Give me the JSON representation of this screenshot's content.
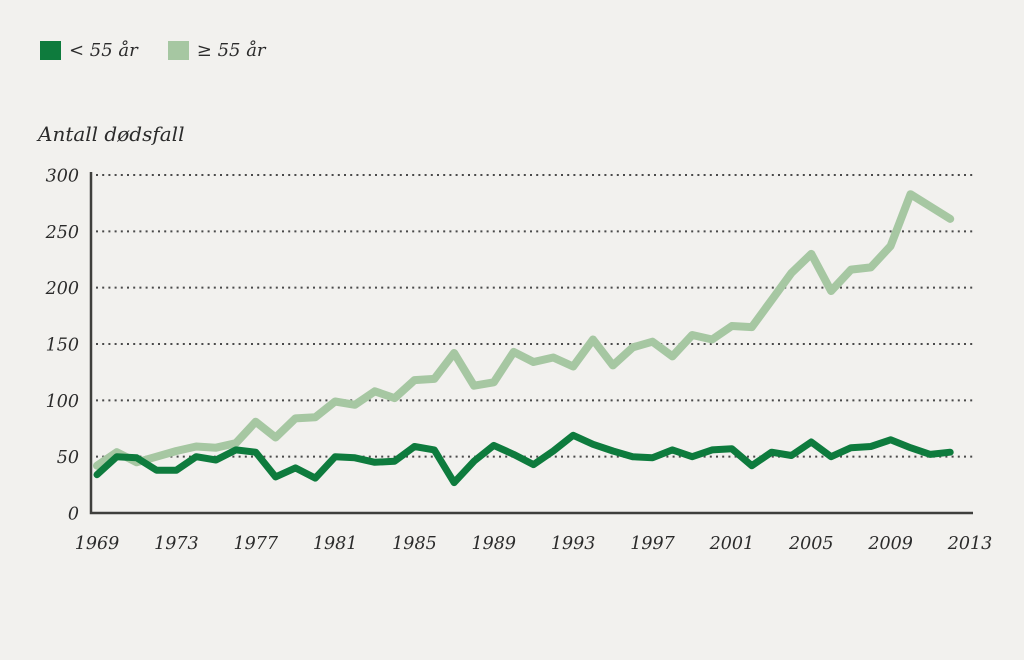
{
  "page": {
    "background": "#f2f1ee"
  },
  "legend": {
    "items": [
      {
        "key": "under-55",
        "label": "< 55 år",
        "color": "#0e7b3d"
      },
      {
        "key": "over-55",
        "label": "≥ 55 år",
        "color": "#a6c7a2"
      }
    ]
  },
  "chart_data": {
    "type": "line",
    "title": "Antall dødsfall",
    "ylabel": "Antall dødsfall",
    "xlabel": "",
    "xlim": [
      1969,
      2013
    ],
    "ylim": [
      0,
      300
    ],
    "grid": "horizontal-dotted",
    "legend_position": "top-left",
    "x_ticks": [
      1969,
      1973,
      1977,
      1981,
      1985,
      1989,
      1993,
      1997,
      2001,
      2005,
      2009,
      2013
    ],
    "y_ticks": [
      0,
      50,
      100,
      150,
      200,
      250,
      300
    ],
    "x": [
      1969,
      1970,
      1971,
      1972,
      1973,
      1974,
      1975,
      1976,
      1977,
      1978,
      1979,
      1980,
      1981,
      1982,
      1983,
      1984,
      1985,
      1986,
      1987,
      1988,
      1989,
      1990,
      1991,
      1992,
      1993,
      1994,
      1995,
      1996,
      1997,
      1998,
      1999,
      2000,
      2001,
      2002,
      2003,
      2004,
      2005,
      2006,
      2007,
      2008,
      2009,
      2010,
      2011,
      2012
    ],
    "series": [
      {
        "name": "< 55 år",
        "color": "#0e7b3d",
        "values": [
          34,
          50,
          49,
          38,
          38,
          50,
          47,
          56,
          54,
          32,
          40,
          31,
          50,
          49,
          45,
          46,
          59,
          56,
          27,
          46,
          60,
          52,
          43,
          55,
          69,
          61,
          55,
          50,
          49,
          56,
          50,
          56,
          57,
          42,
          54,
          51,
          63,
          50,
          58,
          59,
          65,
          58,
          52,
          54
        ]
      },
      {
        "name": "≥ 55 år",
        "color": "#a6c7a2",
        "values": [
          42,
          54,
          45,
          50,
          55,
          59,
          58,
          62,
          81,
          67,
          84,
          85,
          99,
          96,
          108,
          102,
          118,
          119,
          142,
          113,
          116,
          143,
          134,
          138,
          130,
          154,
          131,
          147,
          152,
          139,
          158,
          154,
          166,
          165,
          189,
          213,
          230,
          197,
          216,
          218,
          237,
          283,
          272,
          261
        ]
      }
    ],
    "axis_color": "#3f3f3c",
    "gridline_color": "#4a4a4a"
  }
}
